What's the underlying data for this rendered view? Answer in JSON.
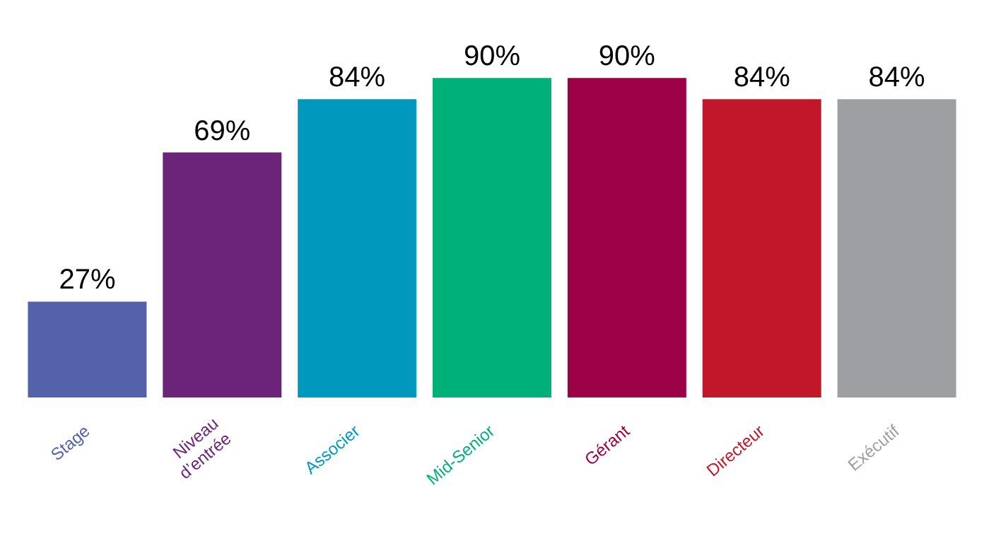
{
  "chart_data": {
    "type": "bar",
    "categories": [
      "Stage",
      "Niveau\nd’entrée",
      "Associer",
      "Mid-Senior",
      "Gérant",
      "Directeur",
      "Exécutif"
    ],
    "values": [
      27,
      69,
      84,
      90,
      90,
      84,
      84
    ],
    "value_labels": [
      "27%",
      "69%",
      "84%",
      "90%",
      "90%",
      "84%",
      "84%"
    ],
    "colors": [
      "#5462ab",
      "#6b2479",
      "#0099bd",
      "#00b079",
      "#9c0046",
      "#c2172a",
      "#9e9fa3"
    ]
  }
}
